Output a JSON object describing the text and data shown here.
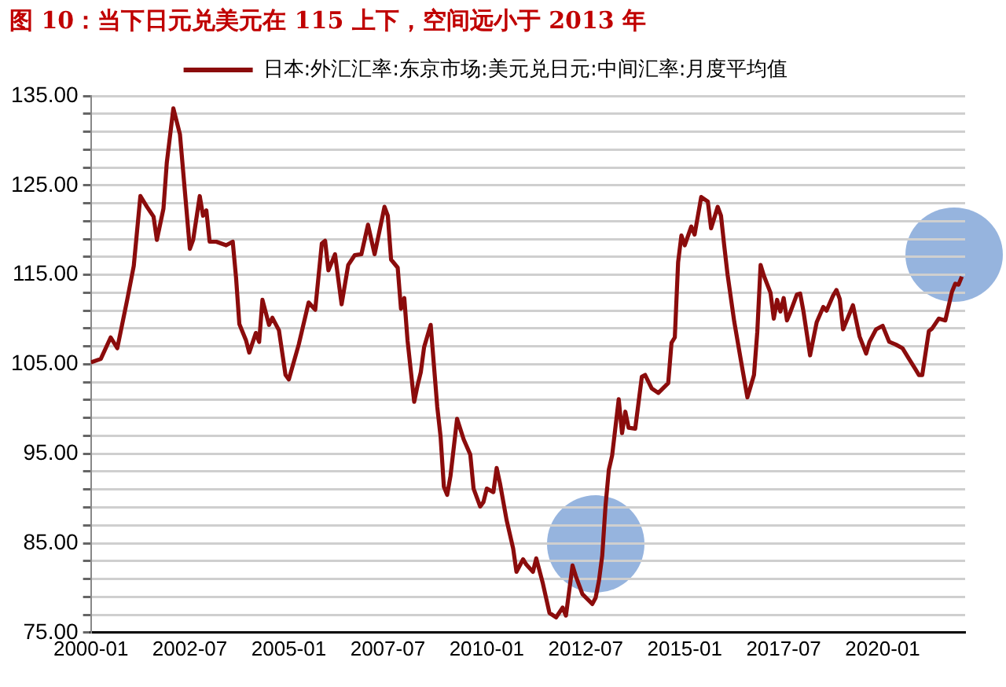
{
  "chart_data": {
    "type": "line",
    "title": "图 10：当下日元兑美元在 115 上下，空间远小于 2013 年",
    "x": [
      "2000-01",
      "2000-04",
      "2000-07",
      "2000-09",
      "2000-12",
      "2001-02",
      "2001-04",
      "2001-06",
      "2001-08",
      "2001-09",
      "2001-11",
      "2001-12",
      "2002-02",
      "2002-04",
      "2002-07",
      "2002-08",
      "2002-10",
      "2002-11",
      "2002-12",
      "2003-01",
      "2003-03",
      "2003-06",
      "2003-08",
      "2003-09",
      "2003-10",
      "2003-12",
      "2004-01",
      "2004-03",
      "2004-04",
      "2004-05",
      "2004-07",
      "2004-08",
      "2004-10",
      "2004-12",
      "2005-01",
      "2005-04",
      "2005-07",
      "2005-09",
      "2005-11",
      "2005-12",
      "2006-01",
      "2006-03",
      "2006-05",
      "2006-07",
      "2006-09",
      "2006-11",
      "2007-01",
      "2007-03",
      "2007-06",
      "2007-07",
      "2007-08",
      "2007-10",
      "2007-11",
      "2007-12",
      "2008-01",
      "2008-03",
      "2008-04",
      "2008-05",
      "2008-06",
      "2008-08",
      "2008-10",
      "2008-11",
      "2008-12",
      "2009-01",
      "2009-02",
      "2009-04",
      "2009-06",
      "2009-08",
      "2009-09",
      "2009-11",
      "2009-12",
      "2010-01",
      "2010-03",
      "2010-04",
      "2010-05",
      "2010-07",
      "2010-09",
      "2010-10",
      "2010-12",
      "2011-01",
      "2011-03",
      "2011-04",
      "2011-06",
      "2011-08",
      "2011-10",
      "2011-12",
      "2012-01",
      "2012-03",
      "2012-04",
      "2012-06",
      "2012-09",
      "2012-10",
      "2012-11",
      "2012-12",
      "2013-01",
      "2013-02",
      "2013-03",
      "2013-05",
      "2013-06",
      "2013-07",
      "2013-08",
      "2013-10",
      "2013-12",
      "2014-01",
      "2014-03",
      "2014-05",
      "2014-08",
      "2014-09",
      "2014-10",
      "2014-11",
      "2014-12",
      "2015-01",
      "2015-03",
      "2015-04",
      "2015-06",
      "2015-08",
      "2015-09",
      "2015-11",
      "2015-12",
      "2016-01",
      "2016-02",
      "2016-04",
      "2016-06",
      "2016-08",
      "2016-10",
      "2016-11",
      "2016-12",
      "2017-01",
      "2017-03",
      "2017-04",
      "2017-05",
      "2017-06",
      "2017-07",
      "2017-08",
      "2017-09",
      "2017-11",
      "2017-12",
      "2018-01",
      "2018-03",
      "2018-05",
      "2018-07",
      "2018-08",
      "2018-10",
      "2018-11",
      "2018-12",
      "2019-01",
      "2019-04",
      "2019-06",
      "2019-08",
      "2019-09",
      "2019-11",
      "2019-12",
      "2020-01",
      "2020-03",
      "2020-05",
      "2020-07",
      "2020-09",
      "2020-11",
      "2020-12",
      "2021-01",
      "2021-03",
      "2021-04",
      "2021-06",
      "2021-08",
      "2021-10",
      "2021-11",
      "2021-12",
      "2022-01"
    ],
    "series": [
      {
        "name": "日本:外汇汇率:东京市场:美元兑日元:中间汇率:月度平均值",
        "color": "#8b0c0c",
        "values": [
          105.2,
          105.6,
          108,
          106.8,
          112.2,
          116,
          123.8,
          122.6,
          121.5,
          118.9,
          122.4,
          127.5,
          133.6,
          130.7,
          117.9,
          118.9,
          123.8,
          121.6,
          122.2,
          118.7,
          118.7,
          118.3,
          118.7,
          114.7,
          109.5,
          107.7,
          106.3,
          108.5,
          107.5,
          112.2,
          109.4,
          110.2,
          108.8,
          103.8,
          103.3,
          107.2,
          111.9,
          111.1,
          118.5,
          118.8,
          115.5,
          117.3,
          111.7,
          116.1,
          117.2,
          117.3,
          120.6,
          117.3,
          122.6,
          121.6,
          116.7,
          115.8,
          111.2,
          112.4,
          107.6,
          100.8,
          102.6,
          104.1,
          106.9,
          109.4,
          100.2,
          96.9,
          91.3,
          90.4,
          92.5,
          98.9,
          96.6,
          94.9,
          91.1,
          89.1,
          89.6,
          91.1,
          90.7,
          93.4,
          91.7,
          87.6,
          84.4,
          81.8,
          83.2,
          82.6,
          81.8,
          83.3,
          80.5,
          77.2,
          76.7,
          77.8,
          76.9,
          82.5,
          81.3,
          79.3,
          78.2,
          78.9,
          80.8,
          83.6,
          89.2,
          93.2,
          94.8,
          101.1,
          97.3,
          99.7,
          97.9,
          97.8,
          103.6,
          103.8,
          102.3,
          101.8,
          102.9,
          107.4,
          108,
          116.4,
          119.4,
          118.3,
          120.4,
          119.5,
          123.7,
          123.2,
          120.2,
          122.6,
          121.6,
          118.2,
          115,
          109.8,
          105.5,
          101.3,
          103.8,
          108.6,
          116.1,
          114.9,
          113,
          110.1,
          112.2,
          110.9,
          112.4,
          109.9,
          110.8,
          112.8,
          112.9,
          110.9,
          106,
          109.7,
          111.4,
          111,
          112.7,
          113.3,
          112.3,
          108.9,
          111.6,
          108.1,
          106.2,
          107.5,
          108.9,
          109.1,
          109.3,
          107.5,
          107.2,
          106.8,
          105.6,
          104.4,
          103.8,
          103.8,
          108.7,
          109,
          110.1,
          109.9,
          113.1,
          114,
          113.9,
          114.8
        ]
      }
    ],
    "xlim": [
      "2000-01",
      "2022-02"
    ],
    "xticks": [
      {
        "value": "2000-01",
        "label": "2000-01"
      },
      {
        "value": "2002-07",
        "label": "2002-07"
      },
      {
        "value": "2005-01",
        "label": "2005-01"
      },
      {
        "value": "2007-07",
        "label": "2007-07"
      },
      {
        "value": "2010-01",
        "label": "2010-01"
      },
      {
        "value": "2012-07",
        "label": "2012-07"
      },
      {
        "value": "2015-01",
        "label": "2015-01"
      },
      {
        "value": "2017-07",
        "label": "2017-07"
      },
      {
        "value": "2020-01",
        "label": "2020-01"
      }
    ],
    "ylim": [
      75,
      135
    ],
    "yticks": [
      {
        "value": 75,
        "label": "75.00"
      },
      {
        "value": 77,
        "label": null
      },
      {
        "value": 79,
        "label": null
      },
      {
        "value": 81,
        "label": null
      },
      {
        "value": 83,
        "label": null
      },
      {
        "value": 85,
        "label": "85.00"
      },
      {
        "value": 87,
        "label": null
      },
      {
        "value": 89,
        "label": null
      },
      {
        "value": 91,
        "label": null
      },
      {
        "value": 93,
        "label": null
      },
      {
        "value": 95,
        "label": "95.00"
      },
      {
        "value": 97,
        "label": null
      },
      {
        "value": 99,
        "label": null
      },
      {
        "value": 101,
        "label": null
      },
      {
        "value": 103,
        "label": null
      },
      {
        "value": 105,
        "label": "105.00"
      },
      {
        "value": 107,
        "label": null
      },
      {
        "value": 109,
        "label": null
      },
      {
        "value": 111,
        "label": null
      },
      {
        "value": 113,
        "label": null
      },
      {
        "value": 115,
        "label": "115.00"
      },
      {
        "value": 117,
        "label": null
      },
      {
        "value": 119,
        "label": null
      },
      {
        "value": 121,
        "label": null
      },
      {
        "value": 123,
        "label": null
      },
      {
        "value": 125,
        "label": "125.00"
      },
      {
        "value": 127,
        "label": null
      },
      {
        "value": 129,
        "label": null
      },
      {
        "value": 131,
        "label": null
      },
      {
        "value": 133,
        "label": null
      },
      {
        "value": 135,
        "label": "135.00"
      }
    ],
    "grid": "y",
    "legend": "top",
    "marker": "none",
    "line_style": "solid"
  }
}
